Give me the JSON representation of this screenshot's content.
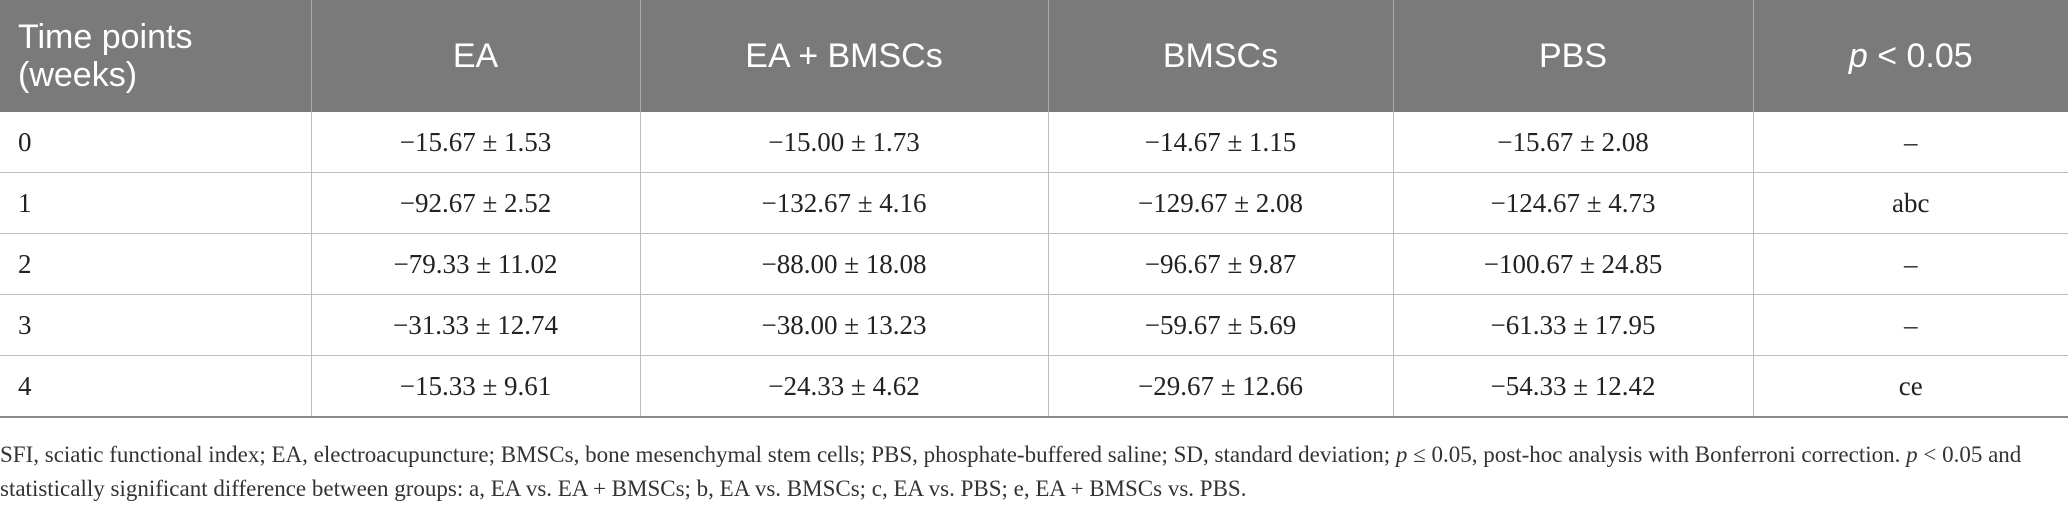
{
  "table": {
    "headers": [
      {
        "pre": "Time points (weeks)",
        "ital": "",
        "post": ""
      },
      {
        "pre": "EA",
        "ital": "",
        "post": ""
      },
      {
        "pre": "EA + BMSCs",
        "ital": "",
        "post": ""
      },
      {
        "pre": "BMSCs",
        "ital": "",
        "post": ""
      },
      {
        "pre": "PBS",
        "ital": "",
        "post": ""
      },
      {
        "pre": "",
        "ital": "p",
        "post": " < 0.05"
      }
    ],
    "rows": [
      [
        "0",
        "−15.67 ± 1.53",
        "−15.00 ± 1.73",
        "−14.67 ± 1.15",
        "−15.67 ± 2.08",
        "–"
      ],
      [
        "1",
        "−92.67 ± 2.52",
        "−132.67 ± 4.16",
        "−129.67 ± 2.08",
        "−124.67 ± 4.73",
        "abc"
      ],
      [
        "2",
        "−79.33 ± 11.02",
        "−88.00 ± 18.08",
        "−96.67 ± 9.87",
        "−100.67 ± 24.85",
        "–"
      ],
      [
        "3",
        "−31.33 ± 12.74",
        "−38.00 ± 13.23",
        "−59.67 ± 5.69",
        "−61.33 ± 17.95",
        "–"
      ],
      [
        "4",
        "−15.33 ± 9.61",
        "−24.33 ± 4.62",
        "−29.67 ± 12.66",
        "−54.33 ± 12.42",
        "ce"
      ]
    ]
  },
  "footnote": {
    "part1": "SFI, sciatic functional index; EA, electroacupuncture; BMSCs, bone mesenchymal stem cells; PBS, phosphate-buffered saline; SD, standard deviation; ",
    "p1": "p",
    "part2": " ≤ 0.05, post-hoc analysis with Bonferroni correction. ",
    "p2": "p",
    "part3": " < 0.05 and statistically significant difference between groups: a, EA vs. EA + BMSCs; b, EA vs. BMSCs; c, EA vs. PBS; e, EA + BMSCs vs. PBS."
  }
}
